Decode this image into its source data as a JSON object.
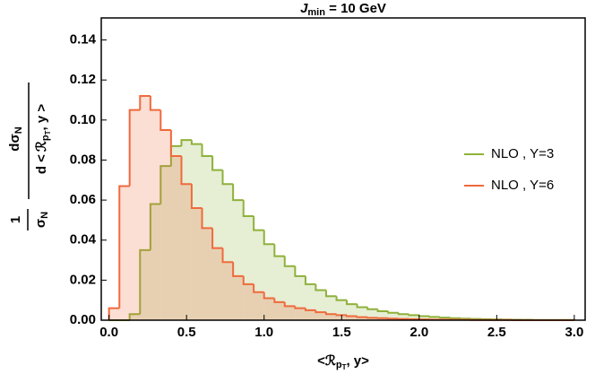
{
  "chart_data": {
    "type": "histogram",
    "title": {
      "main": "J",
      "sub": "min",
      "rest": " = 10 GeV"
    },
    "x_label": [
      "<ℛ",
      "p",
      "T",
      ", y>"
    ],
    "y_label": {
      "numerator_1": "1",
      "denominator_1": [
        "σ",
        "N"
      ],
      "numerator_2": [
        "dσ",
        "N"
      ],
      "denominator_2": [
        "d <",
        "ℛ",
        "p",
        "T",
        ", y >"
      ]
    },
    "bins": [
      0,
      0.067,
      0.133,
      0.2,
      0.267,
      0.333,
      0.4,
      0.467,
      0.533,
      0.6,
      0.667,
      0.733,
      0.8,
      0.867,
      0.933,
      1.0,
      1.067,
      1.133,
      1.2,
      1.267,
      1.333,
      1.4,
      1.467,
      1.533,
      1.6,
      1.667,
      1.733,
      1.8,
      1.867,
      1.933,
      2.0,
      2.067,
      2.133,
      2.2,
      2.267,
      2.333,
      2.4,
      2.467,
      2.533,
      2.6,
      2.667,
      2.733,
      2.8,
      2.867,
      2.933,
      3.0
    ],
    "series": [
      {
        "name": "NLO , Y=3",
        "color": "#8fb13b",
        "values": [
          0,
          0,
          0.003,
          0.035,
          0.058,
          0.077,
          0.087,
          0.09,
          0.088,
          0.082,
          0.075,
          0.068,
          0.06,
          0.052,
          0.045,
          0.038,
          0.032,
          0.027,
          0.022,
          0.018,
          0.015,
          0.012,
          0.01,
          0.008,
          0.0065,
          0.0055,
          0.0045,
          0.0037,
          0.003,
          0.0025,
          0.002,
          0.0016,
          0.0013,
          0.001,
          0.0008,
          0.0006,
          0.0005,
          0.0004,
          0.0003,
          0.0002,
          0.0002,
          0.0001,
          0.0001,
          0.0001,
          0.0001
        ]
      },
      {
        "name": "NLO , Y=6",
        "color": "#ef6a3c",
        "values": [
          0.006,
          0.067,
          0.105,
          0.112,
          0.105,
          0.095,
          0.082,
          0.068,
          0.056,
          0.046,
          0.036,
          0.029,
          0.022,
          0.018,
          0.014,
          0.011,
          0.009,
          0.007,
          0.006,
          0.005,
          0.004,
          0.003,
          0.0025,
          0.002,
          0.0015,
          0.0012,
          0.001,
          0.0008,
          0.0006,
          0.0005,
          0.0004,
          0.0003,
          0.0003,
          0.0002,
          0.0002,
          0.0001,
          0.0001,
          0.0001,
          0.0001,
          0,
          0,
          0,
          0,
          0,
          0
        ]
      }
    ],
    "xlim": [
      -0.05,
      3.07
    ],
    "ylim": [
      0,
      0.151
    ],
    "xticks": [
      {
        "value": 0,
        "label": "0.0"
      },
      0.5,
      {
        "value": 1,
        "label": "1.0"
      },
      1.5,
      {
        "value": 2,
        "label": "2.0"
      },
      2.5,
      {
        "value": 3,
        "label": "3.0"
      }
    ],
    "yticks": [
      {
        "value": 0,
        "label": "0.00"
      },
      {
        "value": 0.02,
        "label": "0.02"
      },
      {
        "value": 0.04,
        "label": "0.04"
      },
      {
        "value": 0.06,
        "label": "0.06"
      },
      {
        "value": 0.08,
        "label": "0.08"
      },
      {
        "value": 0.1,
        "label": "0.10"
      },
      {
        "value": 0.12,
        "label": "0.12"
      },
      {
        "value": 0.14,
        "label": "0.14"
      }
    ],
    "legend": "right"
  }
}
